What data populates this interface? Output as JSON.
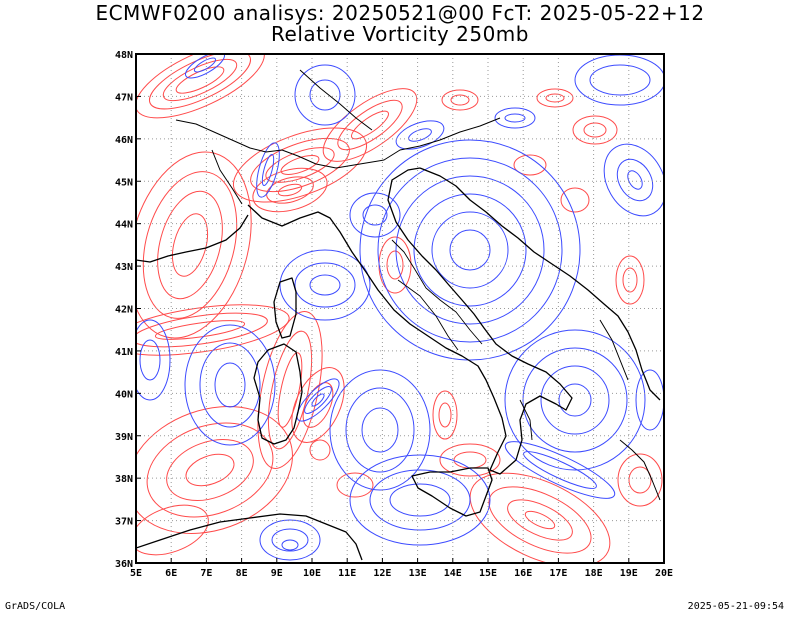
{
  "title": {
    "line1": "ECMWF0200 analisys: 20250521@00 FcT: 2025-05-22+12",
    "line2": "Relative Vorticity 250mb"
  },
  "footer": {
    "left": "GrADS/COLA",
    "right": "2025-05-21-09:54"
  },
  "map": {
    "lon_range": [
      5,
      20
    ],
    "lat_range": [
      36,
      48
    ],
    "lon_labels": [
      "5E",
      "6E",
      "7E",
      "8E",
      "9E",
      "10E",
      "11E",
      "12E",
      "13E",
      "14E",
      "15E",
      "16E",
      "17E",
      "18E",
      "19E",
      "20E"
    ],
    "lat_labels": [
      "36N",
      "37N",
      "38N",
      "39N",
      "40N",
      "41N",
      "42N",
      "43N",
      "44N",
      "45N",
      "46N",
      "47N",
      "48N"
    ],
    "grid": "dotted",
    "colors": {
      "positive_contours": "#ff4b4b",
      "negative_contours": "#3c4bff",
      "coastline": "#000000",
      "grid": "#9a9a9a"
    }
  }
}
